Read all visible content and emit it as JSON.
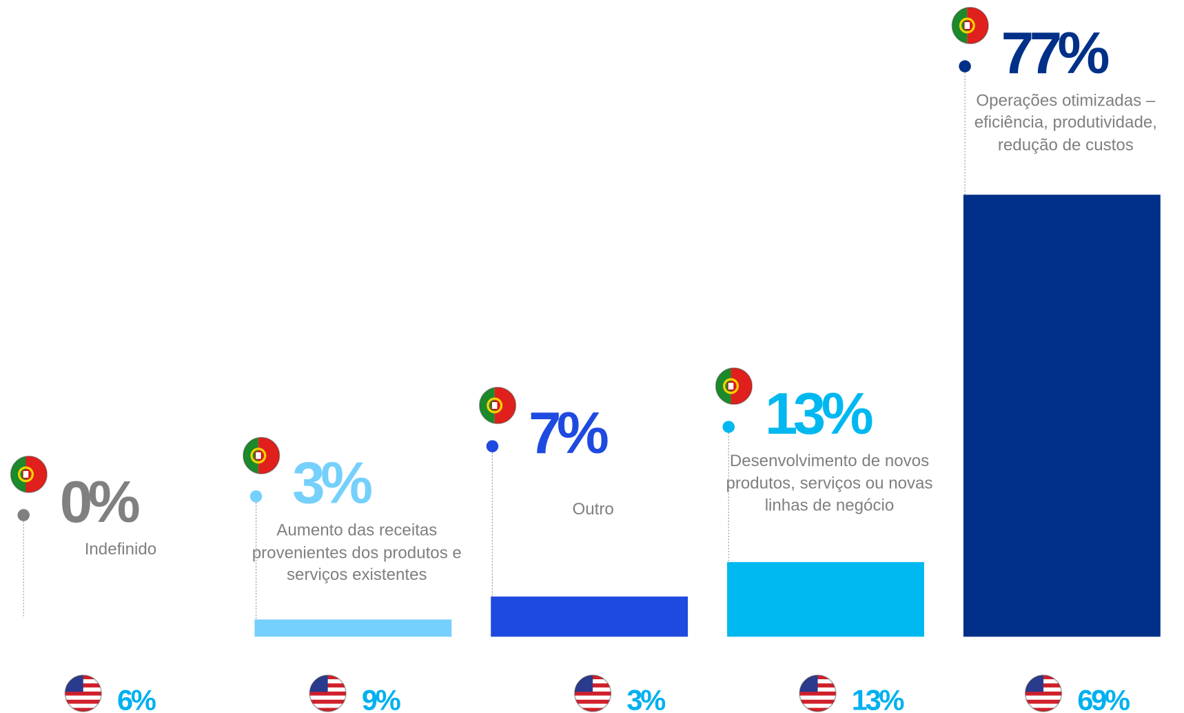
{
  "chart_data": {
    "type": "bar",
    "categories": [
      "Indefinido",
      "Aumento das receitas provenientes dos produtos e serviços existentes",
      "Outro",
      "Desenvolvimento de novos produtos, serviços ou novas linhas de negócio",
      "Operações otimizadas – eficiência, produtividade, redução de custos"
    ],
    "series": [
      {
        "values": [
          0,
          3,
          7,
          13,
          77
        ],
        "value_labels": [
          "0%",
          "3%",
          "7%",
          "13%",
          "77%"
        ],
        "colors": [
          "#808080",
          "#75d0fb",
          "#1f4ae0",
          "#00b8f0",
          "#003087"
        ]
      },
      {
        "values": [
          6,
          9,
          3,
          13,
          69
        ],
        "value_labels": [
          "6%",
          "9%",
          "3%",
          "13%",
          "69%"
        ],
        "color": "#00b0f0"
      }
    ]
  }
}
